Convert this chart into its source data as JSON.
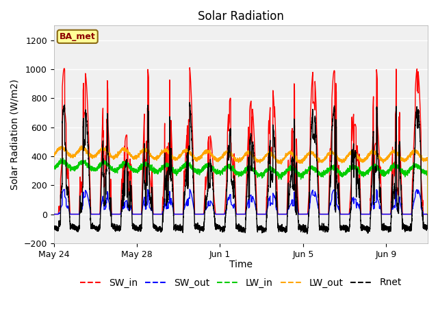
{
  "title": "Solar Radiation",
  "ylabel": "Solar Radiation (W/m2)",
  "xlabel": "Time",
  "ylim": [
    -200,
    1300
  ],
  "yticks": [
    -200,
    0,
    200,
    400,
    600,
    800,
    1000,
    1200
  ],
  "station_label": "BA_met",
  "legend_entries": [
    "SW_in",
    "SW_out",
    "LW_in",
    "LW_out",
    "Rnet"
  ],
  "legend_colors": [
    "#ff0000",
    "#0000ff",
    "#00cc00",
    "#ffa500",
    "#000000"
  ],
  "plot_bg": "#f0f0f0",
  "n_days": 18,
  "xtick_labels": [
    "May 24",
    "May 28",
    "Jun 1",
    "Jun 5",
    "Jun 9"
  ],
  "xtick_positions": [
    0,
    4,
    8,
    12,
    16
  ],
  "title_fontsize": 12,
  "label_fontsize": 10,
  "tick_fontsize": 9,
  "legend_fontsize": 10,
  "line_width": 1.0
}
